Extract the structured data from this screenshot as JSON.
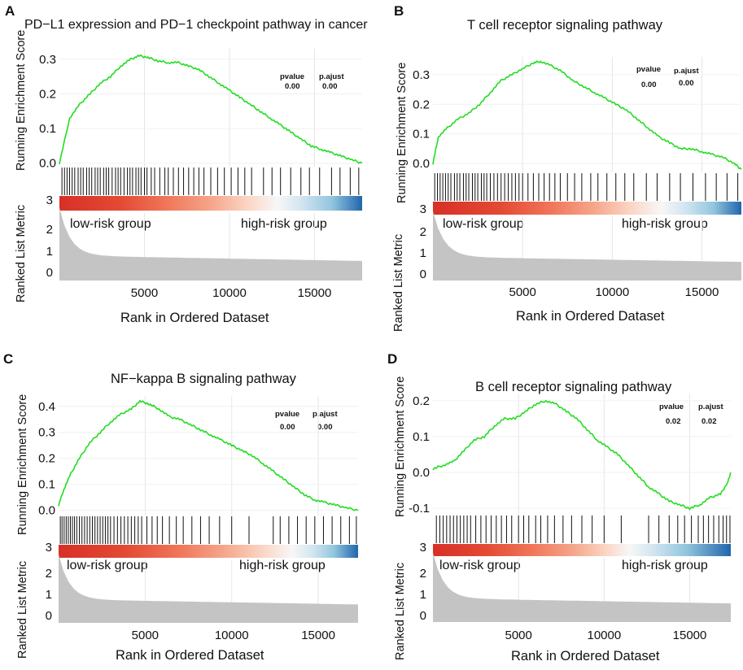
{
  "chart_data": [
    {
      "type": "line",
      "panel_label": "A",
      "title": "PD−L1 expression and PD−1 checkpoint pathway in cancer",
      "ylabel_top": "Running Enrichment Score",
      "ylabel_bottom": "Ranked List Metric",
      "xlabel": "Rank in Ordered Dataset",
      "left_group": "low-risk group",
      "right_group": "high-risk group",
      "pvalue_label": "pvalue",
      "pvalue": "0.00",
      "padj_label": "p.ajust",
      "padj": "0.00",
      "x_ticks": [
        "5000",
        "10000",
        "15000"
      ],
      "x_tick_values": [
        5000,
        10000,
        15000
      ],
      "es_ticks": [
        "0.0",
        "0.1",
        "0.2",
        "0.3"
      ],
      "es_tick_values": [
        0.0,
        0.1,
        0.2,
        0.3
      ],
      "rank_ticks": [
        "0",
        "1",
        "2",
        "3"
      ],
      "xlim": [
        0,
        17800
      ],
      "es_ylim": [
        -0.01,
        0.33
      ],
      "es_curve": [
        [
          0,
          0
        ],
        [
          600,
          0.13
        ],
        [
          1200,
          0.17
        ],
        [
          1800,
          0.2
        ],
        [
          2400,
          0.23
        ],
        [
          3000,
          0.25
        ],
        [
          3600,
          0.28
        ],
        [
          4200,
          0.3
        ],
        [
          4700,
          0.31
        ],
        [
          5200,
          0.305
        ],
        [
          5800,
          0.295
        ],
        [
          6400,
          0.29
        ],
        [
          7000,
          0.29
        ],
        [
          7600,
          0.28
        ],
        [
          8200,
          0.27
        ],
        [
          8800,
          0.25
        ],
        [
          9400,
          0.23
        ],
        [
          10000,
          0.21
        ],
        [
          10600,
          0.19
        ],
        [
          11200,
          0.17
        ],
        [
          11800,
          0.15
        ],
        [
          12400,
          0.13
        ],
        [
          13000,
          0.11
        ],
        [
          13600,
          0.09
        ],
        [
          14200,
          0.07
        ],
        [
          14800,
          0.05
        ],
        [
          15400,
          0.04
        ],
        [
          16000,
          0.03
        ],
        [
          16600,
          0.02
        ],
        [
          17200,
          0.01
        ],
        [
          17800,
          0.0
        ]
      ],
      "hit_positions": [
        150,
        300,
        450,
        600,
        750,
        900,
        1100,
        1250,
        1400,
        1600,
        1750,
        1900,
        2100,
        2250,
        2400,
        2600,
        2750,
        2900,
        3100,
        3300,
        3450,
        3600,
        3800,
        4000,
        4150,
        4300,
        4500,
        4650,
        4800,
        5000,
        5150,
        5400,
        5600,
        5900,
        6200,
        6400,
        6700,
        7000,
        7300,
        7600,
        7900,
        8200,
        8500,
        8900,
        9300,
        9700,
        10100,
        10500,
        10900,
        11300,
        12000,
        12500,
        13000,
        13600,
        14200,
        14700,
        15300,
        16000,
        16500,
        17100,
        17600
      ],
      "heat_gradient": "linear-gradient(to right, #d73027 0%, #e34a33 20%, #f07559 35%, #f5a58a 50%, #fbd5c4 62%, #f7f7f7 72%, #d1e5f0 80%, #92c5de 90%, #2166ac 100%)"
    },
    {
      "type": "line",
      "panel_label": "B",
      "title": "T cell receptor signaling pathway",
      "ylabel_top": "Running Enrichment Score",
      "ylabel_bottom": "Ranked List Metric",
      "xlabel": "Rank in Ordered Dataset",
      "left_group": "low-risk group",
      "right_group": "high-risk group",
      "pvalue_label": "pvalue",
      "pvalue": "0.00",
      "padj_label": "p.ajust",
      "padj": "0.00",
      "x_ticks": [
        "5000",
        "10000",
        "15000"
      ],
      "x_tick_values": [
        5000,
        10000,
        15000
      ],
      "es_ticks": [
        "0.0",
        "0.1",
        "0.2",
        "0.3"
      ],
      "es_tick_values": [
        0.0,
        0.1,
        0.2,
        0.3
      ],
      "rank_ticks": [
        "0",
        "1",
        "2",
        "3"
      ],
      "xlim": [
        0,
        17200
      ],
      "es_ylim": [
        -0.03,
        0.36
      ],
      "es_curve": [
        [
          0,
          0
        ],
        [
          300,
          0.09
        ],
        [
          800,
          0.12
        ],
        [
          1400,
          0.15
        ],
        [
          2000,
          0.17
        ],
        [
          2600,
          0.2
        ],
        [
          3200,
          0.24
        ],
        [
          3800,
          0.28
        ],
        [
          4400,
          0.3
        ],
        [
          5000,
          0.32
        ],
        [
          5600,
          0.34
        ],
        [
          6000,
          0.345
        ],
        [
          6600,
          0.33
        ],
        [
          7200,
          0.31
        ],
        [
          7800,
          0.28
        ],
        [
          8400,
          0.26
        ],
        [
          9000,
          0.24
        ],
        [
          9600,
          0.22
        ],
        [
          10200,
          0.2
        ],
        [
          10800,
          0.18
        ],
        [
          11400,
          0.15
        ],
        [
          12000,
          0.12
        ],
        [
          12600,
          0.09
        ],
        [
          13200,
          0.07
        ],
        [
          13800,
          0.05
        ],
        [
          14400,
          0.05
        ],
        [
          15000,
          0.04
        ],
        [
          15600,
          0.03
        ],
        [
          16200,
          0.02
        ],
        [
          16800,
          0.0
        ],
        [
          17200,
          -0.02
        ]
      ],
      "hit_positions": [
        100,
        250,
        400,
        550,
        700,
        850,
        1000,
        1200,
        1350,
        1500,
        1700,
        1850,
        2000,
        2200,
        2350,
        2500,
        2700,
        2850,
        3000,
        3200,
        3400,
        3600,
        3800,
        4000,
        4200,
        4400,
        4600,
        4800,
        5000,
        5300,
        5600,
        5900,
        6200,
        6500,
        6800,
        7100,
        7500,
        7900,
        8300,
        8800,
        9200,
        9700,
        10200,
        10700,
        11200,
        11900,
        12500,
        13200,
        13800,
        14500,
        15200,
        15800,
        16400,
        17000
      ],
      "heat_gradient": "linear-gradient(to right, #d73027 0%, #e34a33 22%, #f07559 38%, #f5a58a 52%, #fbd5c4 64%, #f7f7f7 74%, #d1e5f0 82%, #92c5de 91%, #2166ac 100%)"
    },
    {
      "type": "line",
      "panel_label": "C",
      "title": "NF−kappa B signaling pathway",
      "ylabel_top": "Running Enrichment Score",
      "ylabel_bottom": "Ranked List Metric",
      "xlabel": "Rank in Ordered Dataset",
      "left_group": "low-risk group",
      "right_group": "high-risk group",
      "pvalue_label": "pvalue",
      "pvalue": "0.00",
      "padj_label": "p.ajust",
      "padj": "0.00",
      "x_ticks": [
        "5000",
        "10000",
        "15000"
      ],
      "x_tick_values": [
        5000,
        10000,
        15000
      ],
      "es_ticks": [
        "0.0",
        "0.1",
        "0.2",
        "0.3",
        "0.4"
      ],
      "es_tick_values": [
        0.0,
        0.1,
        0.2,
        0.3,
        0.4
      ],
      "rank_ticks": [
        "0",
        "1",
        "2",
        "3"
      ],
      "xlim": [
        0,
        17300
      ],
      "es_ylim": [
        -0.02,
        0.44
      ],
      "es_curve": [
        [
          0,
          0.02
        ],
        [
          300,
          0.08
        ],
        [
          700,
          0.14
        ],
        [
          1200,
          0.2
        ],
        [
          1800,
          0.26
        ],
        [
          2400,
          0.3
        ],
        [
          3000,
          0.34
        ],
        [
          3600,
          0.37
        ],
        [
          4200,
          0.39
        ],
        [
          4700,
          0.42
        ],
        [
          5200,
          0.41
        ],
        [
          5800,
          0.39
        ],
        [
          6400,
          0.36
        ],
        [
          7000,
          0.35
        ],
        [
          7600,
          0.33
        ],
        [
          8200,
          0.31
        ],
        [
          8800,
          0.29
        ],
        [
          9400,
          0.27
        ],
        [
          10000,
          0.25
        ],
        [
          10600,
          0.23
        ],
        [
          11200,
          0.21
        ],
        [
          11800,
          0.18
        ],
        [
          12400,
          0.15
        ],
        [
          13000,
          0.12
        ],
        [
          13600,
          0.09
        ],
        [
          14200,
          0.06
        ],
        [
          14800,
          0.04
        ],
        [
          15400,
          0.03
        ],
        [
          16000,
          0.02
        ],
        [
          16600,
          0.01
        ],
        [
          17300,
          0.0
        ]
      ],
      "hit_positions": [
        100,
        200,
        320,
        440,
        560,
        680,
        800,
        920,
        1050,
        1200,
        1350,
        1500,
        1650,
        1800,
        1950,
        2100,
        2250,
        2400,
        2550,
        2700,
        2850,
        3000,
        3200,
        3400,
        3600,
        3800,
        4000,
        4200,
        4400,
        4600,
        4800,
        5100,
        5400,
        5700,
        6000,
        6400,
        6800,
        7200,
        7700,
        8200,
        8700,
        9300,
        10000,
        11000,
        12400,
        12800,
        13300,
        13800,
        14300,
        14800,
        15300,
        15800,
        16300,
        16800,
        17200
      ],
      "heat_gradient": "linear-gradient(to right, #d73027 0%, #e34a33 22%, #f07559 40%, #f5a58a 55%, #fbd5c4 68%, #f7f7f7 78%, #d1e5f0 85%, #92c5de 92%, #2166ac 100%)"
    },
    {
      "type": "line",
      "panel_label": "D",
      "title": "B cell receptor signaling pathway",
      "ylabel_top": "Running Enrichment Score",
      "ylabel_bottom": "Ranked List Metric",
      "xlabel": "Rank in Ordered Dataset",
      "left_group": "low-risk group",
      "right_group": "high-risk group",
      "pvalue_label": "pvalue",
      "pvalue": "0.02",
      "padj_label": "p.ajust",
      "padj": "0.02",
      "x_ticks": [
        "5000",
        "10000",
        "15000"
      ],
      "x_tick_values": [
        5000,
        10000,
        15000
      ],
      "es_ticks": [
        "-0.1",
        "0.0",
        "0.1",
        "0.2"
      ],
      "es_tick_values": [
        -0.1,
        0.0,
        0.1,
        0.2
      ],
      "rank_ticks": [
        "0",
        "1",
        "2",
        "3"
      ],
      "xlim": [
        0,
        17400
      ],
      "es_ylim": [
        -0.12,
        0.22
      ],
      "es_curve": [
        [
          0,
          0.01
        ],
        [
          600,
          0.02
        ],
        [
          1200,
          0.03
        ],
        [
          1800,
          0.06
        ],
        [
          2400,
          0.09
        ],
        [
          3000,
          0.1
        ],
        [
          3600,
          0.13
        ],
        [
          4200,
          0.15
        ],
        [
          4800,
          0.15
        ],
        [
          5400,
          0.17
        ],
        [
          6000,
          0.19
        ],
        [
          6600,
          0.2
        ],
        [
          7200,
          0.19
        ],
        [
          7800,
          0.17
        ],
        [
          8400,
          0.15
        ],
        [
          9000,
          0.12
        ],
        [
          9600,
          0.09
        ],
        [
          10200,
          0.07
        ],
        [
          10800,
          0.05
        ],
        [
          11400,
          0.02
        ],
        [
          12000,
          -0.01
        ],
        [
          12600,
          -0.04
        ],
        [
          13200,
          -0.06
        ],
        [
          13800,
          -0.08
        ],
        [
          14400,
          -0.09
        ],
        [
          15000,
          -0.1
        ],
        [
          15600,
          -0.09
        ],
        [
          16200,
          -0.07
        ],
        [
          16800,
          -0.06
        ],
        [
          17200,
          -0.03
        ],
        [
          17400,
          0.0
        ]
      ],
      "hit_positions": [
        200,
        400,
        600,
        800,
        1000,
        1200,
        1400,
        1600,
        1800,
        2000,
        2200,
        2500,
        2800,
        3100,
        3400,
        3700,
        4000,
        4300,
        4600,
        5000,
        5300,
        5600,
        6000,
        6300,
        6700,
        7100,
        7600,
        8100,
        8700,
        9300,
        10000,
        11000,
        12600,
        13200,
        13800,
        14300,
        14700,
        15100,
        15500,
        15800,
        16100,
        16400,
        16700,
        16950,
        17150,
        17350
      ],
      "heat_gradient": "linear-gradient(to right, #d73027 0%, #e34a33 18%, #f07559 33%, #f5a58a 47%, #fbd5c4 58%, #f7f7f7 66%, #d1e5f0 74%, #92c5de 85%, #2166ac 100%)"
    }
  ]
}
